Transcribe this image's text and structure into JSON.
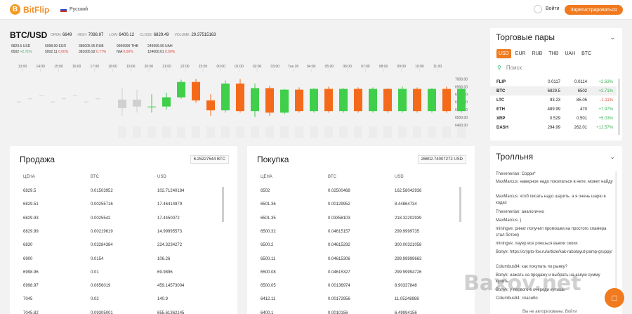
{
  "header": {
    "logo_letter": "B",
    "brand": "BitFlip",
    "language": "Русский",
    "login": "Войти",
    "register": "Зарегистрироваться"
  },
  "pair": {
    "title": "BTC/USD",
    "open_label": "OPEN:",
    "open": "6649",
    "high_label": "HIGH:",
    "high": "7098.97",
    "low_label": "LOW:",
    "low": "6400.12",
    "close_label": "CLOSE:",
    "close": "6829.49",
    "volume_label": "VOLUME:",
    "volume": "29.37515163"
  },
  "tickers": [
    {
      "v1": "6829.5",
      "c1": "USD",
      "v2": "6502",
      "ch": "+2.71%",
      "dir": "pos"
    },
    {
      "v1": "6998.99",
      "c1": "EUR",
      "v2": "5002.11",
      "ch": "0.00%",
      "dir": "neg"
    },
    {
      "v1": "389005.95",
      "c1": "RUB",
      "v2": "381005.92",
      "ch": "0.77%",
      "dir": "neg"
    },
    {
      "v1": "9999999",
      "c1": "THB",
      "v2": "N/A",
      "ch": "0.00%",
      "dir": "neg"
    },
    {
      "v1": "249999.99",
      "c1": "UAH",
      "v2": "124000.01",
      "ch": "0.00%",
      "dir": "neg"
    }
  ],
  "chart_data": {
    "type": "candlestick",
    "x_labels": [
      "13:00",
      "14:00",
      "15:00",
      "16:00",
      "17:00",
      "18:00",
      "19:00",
      "20:00",
      "21:00",
      "22:00",
      "23:00",
      "00:00",
      "01:00",
      "02:00",
      "03:00",
      "Tue 26",
      "04:00",
      "05:00",
      "06:00",
      "07:00",
      "08:00",
      "09:00",
      "10:00",
      "11:00"
    ],
    "y_ticks": [
      "7000.00",
      "6900.00",
      "6800.00",
      "6700.00",
      "6600.00",
      "6500.00",
      "6400.00"
    ],
    "ylim": [
      6380,
      7040
    ],
    "candles": [
      {
        "o": 6620,
        "c": 6730,
        "h": 6880,
        "l": 6520
      },
      {
        "o": 6730,
        "c": 6640,
        "h": 6860,
        "l": 6560
      },
      {
        "o": 6640,
        "c": 6640,
        "h": 6800,
        "l": 6560
      },
      {
        "o": 6640,
        "c": 6760,
        "h": 6820,
        "l": 6600
      },
      {
        "o": 6760,
        "c": 6960,
        "h": 6990,
        "l": 6740
      },
      {
        "o": 6960,
        "c": 6720,
        "h": 7000,
        "l": 6690
      },
      {
        "o": 6720,
        "c": 6590,
        "h": 6800,
        "l": 6520
      },
      {
        "o": 6590,
        "c": 6940,
        "h": 6980,
        "l": 6560
      },
      {
        "o": 6940,
        "c": 6580,
        "h": 7000,
        "l": 6560
      },
      {
        "o": 6580,
        "c": 6880,
        "h": 6940,
        "l": 6500
      },
      {
        "o": 6880,
        "c": 6560,
        "h": 6910,
        "l": 6520
      },
      {
        "o": 6560,
        "c": 6860,
        "h": 6870,
        "l": 6540
      },
      {
        "o": 6860,
        "c": 6580,
        "h": 6890,
        "l": 6560
      },
      {
        "o": 6580,
        "c": 6870,
        "h": 6880,
        "l": 6560
      },
      {
        "o": 6870,
        "c": 6580,
        "h": 6900,
        "l": 6560
      },
      {
        "o": 6580,
        "c": 6870,
        "h": 6880,
        "l": 6560
      },
      {
        "o": 6870,
        "c": 6580,
        "h": 6890,
        "l": 6560
      },
      {
        "o": 6580,
        "c": 6870,
        "h": 6890,
        "l": 6560
      },
      {
        "o": 6870,
        "c": 6580,
        "h": 6880,
        "l": 6560
      },
      {
        "o": 6580,
        "c": 6870,
        "h": 6900,
        "l": 6560
      },
      {
        "o": 6870,
        "c": 6580,
        "h": 6890,
        "l": 6560
      },
      {
        "o": 6580,
        "c": 6870,
        "h": 6880,
        "l": 6560
      },
      {
        "o": 6870,
        "c": 6580,
        "h": 6900,
        "l": 6560
      },
      {
        "o": 6580,
        "c": 6870,
        "h": 6890,
        "l": 6560
      },
      {
        "o": 6870,
        "c": 6580,
        "h": 6880,
        "l": 6560
      }
    ]
  },
  "pairs_panel": {
    "title": "Торговые пары",
    "tabs": [
      "USD",
      "EUR",
      "RUB",
      "THB",
      "UAH",
      "BTC"
    ],
    "search_placeholder": "Поиск",
    "rows": [
      {
        "sym": "FLIP",
        "a": "0.0117",
        "b": "0.0114",
        "ch": "+2.63%",
        "dir": "pos"
      },
      {
        "sym": "BTC",
        "a": "6829.5",
        "b": "6502",
        "ch": "+2.71%",
        "dir": "pos"
      },
      {
        "sym": "LTC",
        "a": "93.23",
        "b": "85.05",
        "ch": "-1.11%",
        "dir": "neg"
      },
      {
        "sym": "ETH",
        "a": "489.99",
        "b": "470",
        "ch": "+7.97%",
        "dir": "pos"
      },
      {
        "sym": "XRP",
        "a": "0.529",
        "b": "0.501",
        "ch": "+5.03%",
        "dir": "pos"
      },
      {
        "sym": "DASH",
        "a": "294.99",
        "b": "262.01",
        "ch": "+12.57%",
        "dir": "pos"
      }
    ]
  },
  "troll": {
    "title": "Тролльня",
    "messages": [
      "Thevenerian: Сорри*",
      "MaxMarcus: наверное надо покопаться в нете, может найду",
      "MaxMarcus: чтоб писать надо шарить. а я очень шарю в кодах",
      "Thevenerian: аналогично",
      "MaxMarcus: )",
      "miningve: ринат получил промошки,на простого спамера стал ботом)",
      "miningve: пауер все роешься вьюхи своих",
      "Bonyk: https://crypto-fox.ru/article/kak-rabotayut-pamp-gruppy/",
      "Columbus84: как покупать по рынку?",
      "Bonyk: нажать на продажу и выбрать на какую сумму купить",
      "Bonyk: у первого в очереди купишь",
      "Columbus84: спасибо"
    ],
    "footer": "Вы не авторизованы. Войти"
  },
  "sell": {
    "title": "Продажа",
    "total": "6.25227544 BTC",
    "h1": "ЦЕНА",
    "h2": "BTC",
    "h3": "USD",
    "rows": [
      [
        "6829.5",
        "0.01503952",
        "102.71240184"
      ],
      [
        "6829.51",
        "0.00255716",
        "17.46414979"
      ],
      [
        "6829.93",
        "0.0025542",
        "17.4450072"
      ],
      [
        "6829.99",
        "0.00219619",
        "14.99995573"
      ],
      [
        "6830",
        "0.03284384",
        "224.3234272"
      ],
      [
        "6900",
        "0.0154",
        "106.26"
      ],
      [
        "6998.96",
        "0.01",
        "69.9896"
      ],
      [
        "6998.97",
        "0.0656019",
        "459.14573004"
      ],
      [
        "7045",
        "0.02",
        "140.9"
      ],
      [
        "7045.82",
        "0.09305001",
        "655.61362145"
      ]
    ]
  },
  "buy": {
    "title": "Покупка",
    "total": "26802.74007272 USD",
    "h1": "ЦЕНА",
    "h2": "BTC",
    "h3": "USD",
    "rows": [
      [
        "6502",
        "0.02500468",
        "162.58042936"
      ],
      [
        "6501.36",
        "0.00129952",
        "8.44864734"
      ],
      [
        "6501.35",
        "0.03358103",
        "218.32202939"
      ],
      [
        "6500.32",
        "0.04615157",
        "299.9999735"
      ],
      [
        "6500.2",
        "0.04615292",
        "300.00321058"
      ],
      [
        "6500.11",
        "0.04615306",
        "299.99999663"
      ],
      [
        "6500.08",
        "0.04615327",
        "299.99994726"
      ],
      [
        "6500.05",
        "0.00136974",
        "8.90337848"
      ],
      [
        "6412.11",
        "0.00172956",
        "11.05248988"
      ],
      [
        "6400.1",
        "0.0010156",
        "6.49994156"
      ]
    ]
  },
  "watermark": "Baxov.net"
}
